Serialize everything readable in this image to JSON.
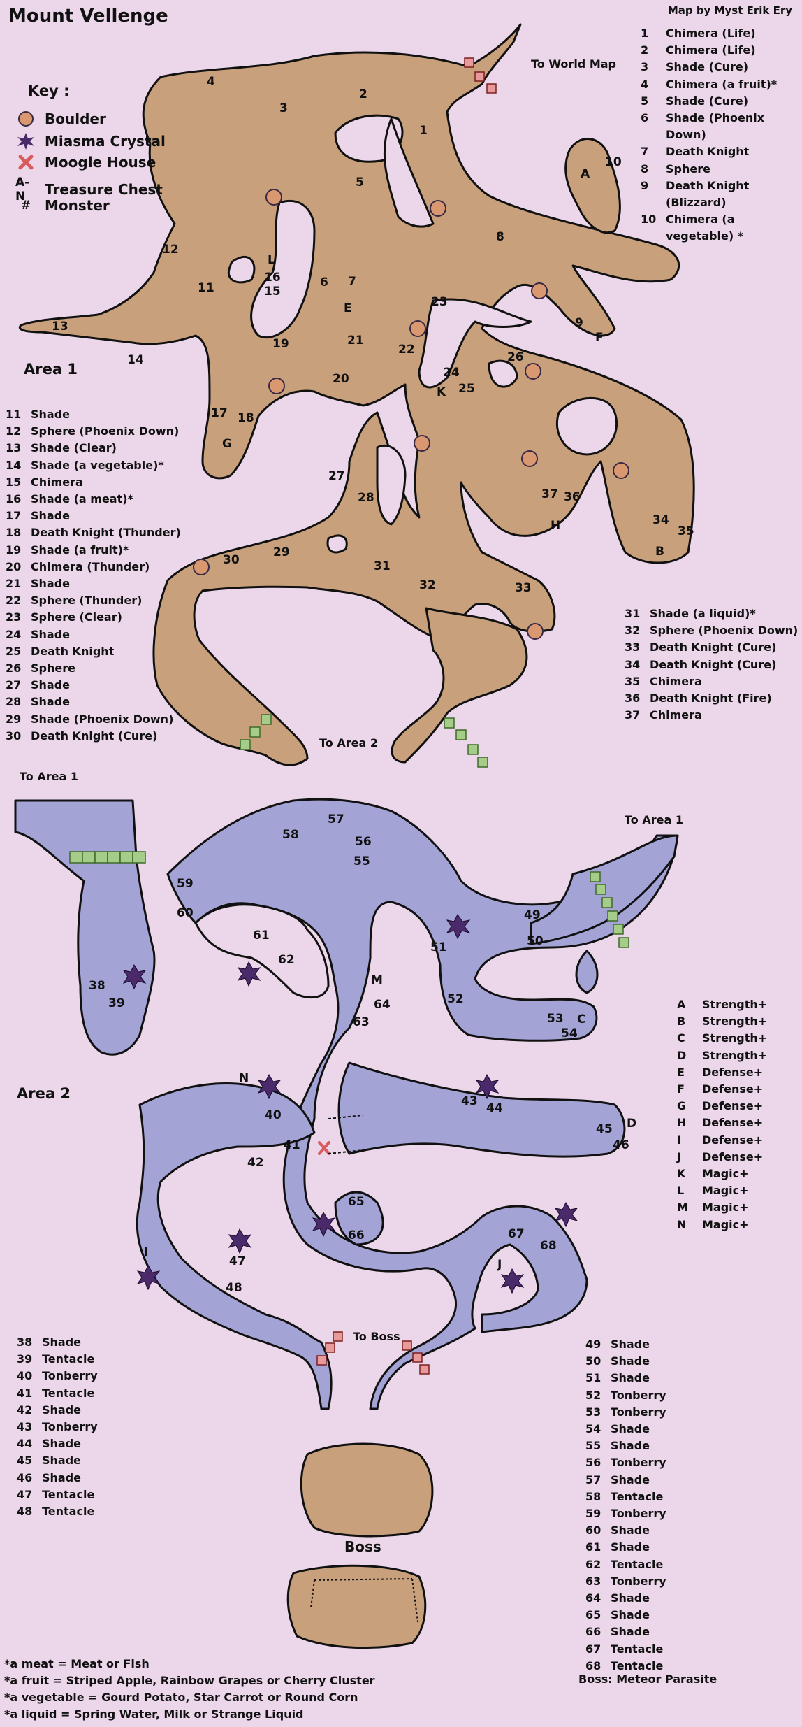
{
  "title": "Mount Vellenge",
  "credit": "Map by Myst Erik Ery",
  "key": {
    "heading": "Key :",
    "items": [
      {
        "icon": "boulder-icon",
        "label": "Boulder"
      },
      {
        "icon": "miasma-crystal-icon",
        "label": "Miasma Crystal"
      },
      {
        "icon": "moogle-house-icon",
        "label": "Moogle House"
      },
      {
        "icon": "A-N",
        "label": "Treasure Chest"
      },
      {
        "icon": "#",
        "label": "Monster"
      }
    ]
  },
  "colors": {
    "background": "#ecd7ea",
    "area1": "#c9a07c",
    "area2": "#a3a3d6",
    "moogle": "#e89a9a",
    "link": "#a6cc8a"
  },
  "labels": {
    "area1": "Area 1",
    "area2": "Area 2",
    "to_world_map": "To World Map",
    "to_area2": "To Area 2",
    "to_area1_left": "To Area 1",
    "to_area1_right": "To Area 1",
    "to_boss": "To Boss",
    "boss": "Boss"
  },
  "monsters_top_right": [
    {
      "n": "1",
      "name": "Chimera (Life)"
    },
    {
      "n": "2",
      "name": "Chimera (Life)"
    },
    {
      "n": "3",
      "name": "Shade (Cure)"
    },
    {
      "n": "4",
      "name": "Chimera (a fruit)*"
    },
    {
      "n": "5",
      "name": "Shade (Cure)"
    },
    {
      "n": "6",
      "name": "Shade (Phoenix Down)"
    },
    {
      "n": "7",
      "name": "Death Knight"
    },
    {
      "n": "8",
      "name": "Sphere"
    },
    {
      "n": "9",
      "name": "Death Knight (Blizzard)"
    },
    {
      "n": "10",
      "name": "Chimera (a vegetable) *"
    }
  ],
  "monsters_area1_left": [
    {
      "n": "11",
      "name": "Shade"
    },
    {
      "n": "12",
      "name": "Sphere (Phoenix Down)"
    },
    {
      "n": "13",
      "name": "Shade (Clear)"
    },
    {
      "n": "14",
      "name": "Shade (a vegetable)*"
    },
    {
      "n": "15",
      "name": "Chimera"
    },
    {
      "n": "16",
      "name": "Shade (a meat)*"
    },
    {
      "n": "17",
      "name": "Shade"
    },
    {
      "n": "18",
      "name": "Death Knight (Thunder)"
    },
    {
      "n": "19",
      "name": "Shade (a fruit)*"
    },
    {
      "n": "20",
      "name": "Chimera (Thunder)"
    },
    {
      "n": "21",
      "name": "Shade"
    },
    {
      "n": "22",
      "name": "Sphere (Thunder)"
    },
    {
      "n": "23",
      "name": "Sphere (Clear)"
    },
    {
      "n": "24",
      "name": "Shade"
    },
    {
      "n": "25",
      "name": "Death Knight"
    },
    {
      "n": "26",
      "name": "Sphere"
    },
    {
      "n": "27",
      "name": "Shade"
    },
    {
      "n": "28",
      "name": "Shade"
    },
    {
      "n": "29",
      "name": "Shade (Phoenix Down)"
    },
    {
      "n": "30",
      "name": "Death Knight (Cure)"
    }
  ],
  "monsters_area1_right": [
    {
      "n": "31",
      "name": "Shade (a liquid)*"
    },
    {
      "n": "32",
      "name": "Sphere (Phoenix Down)"
    },
    {
      "n": "33",
      "name": "Death Knight (Cure)"
    },
    {
      "n": "34",
      "name": "Death Knight (Cure)"
    },
    {
      "n": "35",
      "name": "Chimera"
    },
    {
      "n": "36",
      "name": "Death Knight (Fire)"
    },
    {
      "n": "37",
      "name": "Chimera"
    }
  ],
  "treasures": [
    {
      "n": "A",
      "name": "Strength+"
    },
    {
      "n": "B",
      "name": "Strength+"
    },
    {
      "n": "C",
      "name": "Strength+"
    },
    {
      "n": "D",
      "name": "Strength+"
    },
    {
      "n": "E",
      "name": "Defense+"
    },
    {
      "n": "F",
      "name": "Defense+"
    },
    {
      "n": "G",
      "name": "Defense+"
    },
    {
      "n": "H",
      "name": "Defense+"
    },
    {
      "n": "I",
      "name": "Defense+"
    },
    {
      "n": "J",
      "name": "Defense+"
    },
    {
      "n": "K",
      "name": "Magic+"
    },
    {
      "n": "L",
      "name": "Magic+"
    },
    {
      "n": "M",
      "name": "Magic+"
    },
    {
      "n": "N",
      "name": "Magic+"
    }
  ],
  "monsters_area2_left": [
    {
      "n": "38",
      "name": "Shade"
    },
    {
      "n": "39",
      "name": "Tentacle"
    },
    {
      "n": "40",
      "name": "Tonberry"
    },
    {
      "n": "41",
      "name": "Tentacle"
    },
    {
      "n": "42",
      "name": "Shade"
    },
    {
      "n": "43",
      "name": "Tonberry"
    },
    {
      "n": "44",
      "name": "Shade"
    },
    {
      "n": "45",
      "name": "Shade"
    },
    {
      "n": "46",
      "name": "Shade"
    },
    {
      "n": "47",
      "name": "Tentacle"
    },
    {
      "n": "48",
      "name": "Tentacle"
    }
  ],
  "monsters_area2_right": [
    {
      "n": "49",
      "name": "Shade"
    },
    {
      "n": "50",
      "name": "Shade"
    },
    {
      "n": "51",
      "name": "Shade"
    },
    {
      "n": "52",
      "name": "Tonberry"
    },
    {
      "n": "53",
      "name": "Tonberry"
    },
    {
      "n": "54",
      "name": "Shade"
    },
    {
      "n": "55",
      "name": "Shade"
    },
    {
      "n": "56",
      "name": "Tonberry"
    },
    {
      "n": "57",
      "name": "Shade"
    },
    {
      "n": "58",
      "name": "Tentacle"
    },
    {
      "n": "59",
      "name": "Tonberry"
    },
    {
      "n": "60",
      "name": "Shade"
    },
    {
      "n": "61",
      "name": "Shade"
    },
    {
      "n": "62",
      "name": "Tentacle"
    },
    {
      "n": "63",
      "name": "Tonberry"
    },
    {
      "n": "64",
      "name": "Shade"
    },
    {
      "n": "65",
      "name": "Shade"
    },
    {
      "n": "66",
      "name": "Shade"
    },
    {
      "n": "67",
      "name": "Tentacle"
    },
    {
      "n": "68",
      "name": "Tentacle"
    }
  ],
  "boss_line": "Boss: Meteor Parasite",
  "footnotes": [
    "*a meat = Meat or Fish",
    "*a fruit = Striped Apple, Rainbow Grapes or Cherry Cluster",
    "*a vegetable = Gourd Potato, Star Carrot or Round Corn",
    "*a liquid = Spring Water, Milk or Strange Liquid"
  ],
  "map_labels": {
    "area1": [
      [
        "1",
        ""
      ],
      [
        "2",
        ""
      ],
      [
        "3",
        ""
      ],
      [
        "4",
        ""
      ],
      [
        "5",
        ""
      ],
      [
        "6",
        ""
      ],
      [
        "7",
        ""
      ],
      [
        "8",
        ""
      ],
      [
        "9",
        ""
      ],
      [
        "10",
        ""
      ],
      [
        "11",
        ""
      ],
      [
        "12",
        ""
      ],
      [
        "13",
        ""
      ],
      [
        "14",
        ""
      ],
      [
        "15",
        ""
      ],
      [
        "16",
        ""
      ],
      [
        "17",
        ""
      ],
      [
        "18",
        ""
      ],
      [
        "19",
        ""
      ],
      [
        "20",
        ""
      ],
      [
        "21",
        ""
      ],
      [
        "22",
        ""
      ],
      [
        "23",
        ""
      ],
      [
        "24",
        ""
      ],
      [
        "25",
        ""
      ],
      [
        "26",
        ""
      ],
      [
        "27",
        ""
      ],
      [
        "28",
        ""
      ],
      [
        "29",
        ""
      ],
      [
        "30",
        ""
      ],
      [
        "31",
        ""
      ],
      [
        "32",
        ""
      ],
      [
        "33",
        ""
      ],
      [
        "34",
        ""
      ],
      [
        "35",
        ""
      ],
      [
        "36",
        ""
      ],
      [
        "37",
        ""
      ],
      [
        "A",
        ""
      ],
      [
        "B",
        ""
      ],
      [
        "E",
        ""
      ],
      [
        "F",
        ""
      ],
      [
        "G",
        ""
      ],
      [
        "H",
        ""
      ],
      [
        "K",
        ""
      ],
      [
        "L",
        ""
      ]
    ],
    "area2": [
      [
        "38",
        ""
      ],
      [
        "39",
        ""
      ],
      [
        "40",
        ""
      ],
      [
        "41",
        ""
      ],
      [
        "42",
        ""
      ],
      [
        "43",
        ""
      ],
      [
        "44",
        ""
      ],
      [
        "45",
        ""
      ],
      [
        "46",
        ""
      ],
      [
        "47",
        ""
      ],
      [
        "48",
        ""
      ],
      [
        "49",
        ""
      ],
      [
        "50",
        ""
      ],
      [
        "51",
        ""
      ],
      [
        "52",
        ""
      ],
      [
        "53",
        ""
      ],
      [
        "54",
        ""
      ],
      [
        "55",
        ""
      ],
      [
        "56",
        ""
      ],
      [
        "57",
        ""
      ],
      [
        "58",
        ""
      ],
      [
        "59",
        ""
      ],
      [
        "60",
        ""
      ],
      [
        "61",
        ""
      ],
      [
        "62",
        ""
      ],
      [
        "63",
        ""
      ],
      [
        "64",
        ""
      ],
      [
        "65",
        ""
      ],
      [
        "66",
        ""
      ],
      [
        "67",
        ""
      ],
      [
        "68",
        ""
      ],
      [
        "C",
        ""
      ],
      [
        "D",
        ""
      ],
      [
        "I",
        ""
      ],
      [
        "J",
        ""
      ],
      [
        "M",
        ""
      ],
      [
        "N",
        ""
      ]
    ]
  }
}
